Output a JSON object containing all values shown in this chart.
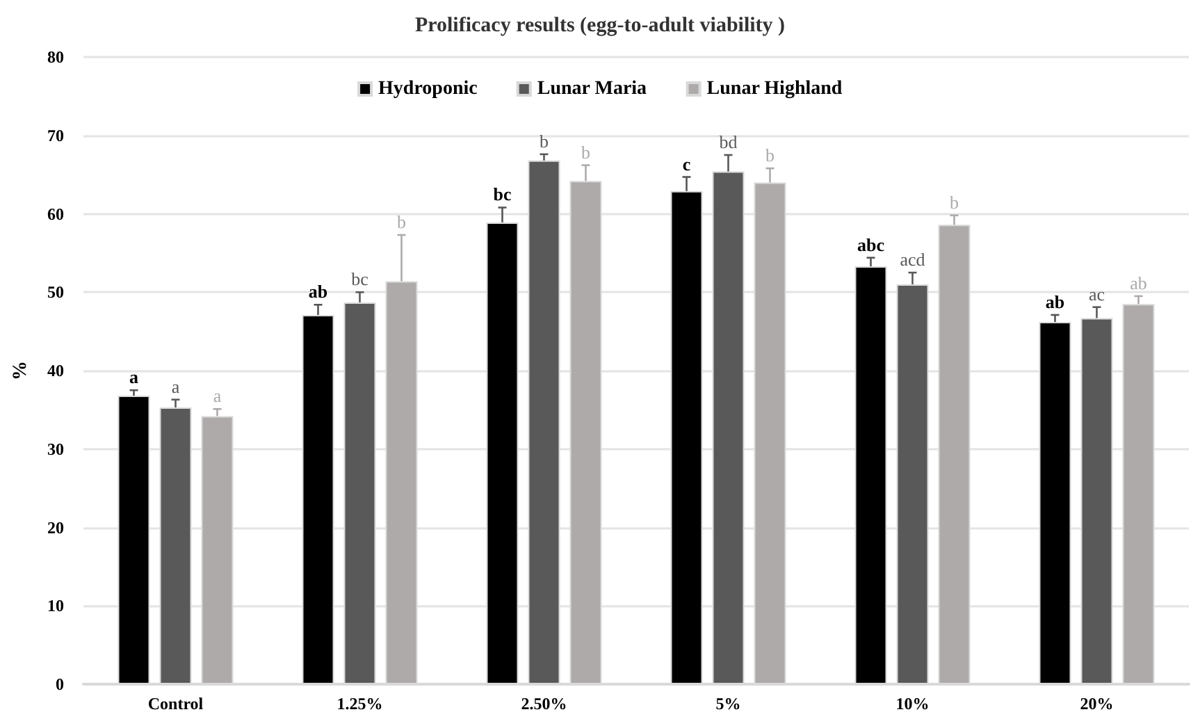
{
  "chart_data": {
    "type": "bar",
    "title": "Prolificacy results (egg-to-adult viability )",
    "ylabel": "%",
    "categories": [
      "Control",
      "1.25%",
      "2.50%",
      "5%",
      "10%",
      "20%"
    ],
    "series": [
      {
        "name": "Hydroponic",
        "color": "#000000",
        "values": [
          36.8,
          47.1,
          58.9,
          62.9,
          53.3,
          46.2
        ],
        "errors": [
          [
            36.8,
            37.5
          ],
          [
            47.1,
            48.4
          ],
          [
            58.9,
            60.8
          ],
          [
            62.9,
            64.7
          ],
          [
            53.3,
            54.4
          ],
          [
            46.2,
            47.1
          ]
        ],
        "value_labels": [
          "a",
          "ab",
          "bc",
          "c",
          "abc",
          "ab"
        ]
      },
      {
        "name": "Lunar Maria",
        "color": "#595959",
        "values": [
          35.3,
          48.7,
          66.8,
          65.4,
          51.0,
          46.7
        ],
        "errors": [
          [
            35.3,
            36.3
          ],
          [
            48.7,
            50.0
          ],
          [
            66.8,
            67.6
          ],
          [
            65.4,
            67.5
          ],
          [
            51.0,
            52.5
          ],
          [
            46.7,
            48.1
          ]
        ],
        "value_labels": [
          "a",
          "bc",
          "b",
          "bd",
          "acd",
          "ac"
        ]
      },
      {
        "name": "Lunar Highland",
        "color": "#aeaaaa",
        "values": [
          34.2,
          51.4,
          64.2,
          64.0,
          58.6,
          48.5
        ],
        "errors": [
          [
            34.2,
            35.1
          ],
          [
            51.4,
            57.3
          ],
          [
            64.2,
            66.2
          ],
          [
            64.0,
            65.8
          ],
          [
            58.6,
            59.8
          ],
          [
            48.5,
            49.5
          ]
        ],
        "value_labels": [
          "a",
          "b",
          "b",
          "b",
          "b",
          "ab"
        ]
      }
    ],
    "ylim": [
      0,
      80
    ],
    "yticks": [
      0,
      10,
      20,
      30,
      40,
      50,
      60,
      70,
      80
    ],
    "grid": "y",
    "legend": "top"
  }
}
